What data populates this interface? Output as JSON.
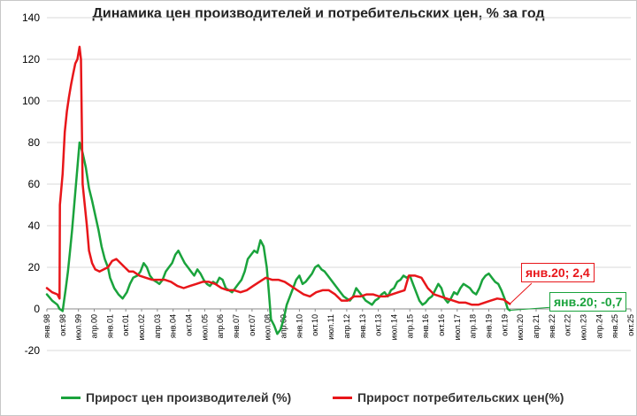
{
  "chart_data": {
    "type": "line",
    "title": "Динамика цен производителей и потребительских цен, % за год",
    "xlabel": "",
    "ylabel": "",
    "ylim": [
      -20,
      140
    ],
    "yticks": [
      -20,
      0,
      20,
      40,
      60,
      80,
      100,
      120,
      140
    ],
    "x_tick_labels": [
      "янв.98",
      "окт.98",
      "июл.99",
      "апр.00",
      "янв.01",
      "окт.01",
      "июл.02",
      "апр.03",
      "янв.04",
      "окт.04",
      "июл.05",
      "апр.06",
      "янв.07",
      "окт.07",
      "июл.08",
      "апр.09",
      "янв.10",
      "окт.10",
      "июл.11",
      "апр.12",
      "янв.13",
      "окт.13",
      "июл.14",
      "апр.15",
      "янв.16",
      "окт.16",
      "июл.17",
      "апр.18",
      "янв.19",
      "окт.19",
      "июл.20",
      "апр.21",
      "янв.22",
      "окт.22",
      "июл.23",
      "апр.24",
      "янв.25",
      "окт.25"
    ],
    "x_unit": "year",
    "xlim": [
      1998.0,
      2025.75
    ],
    "grid": true,
    "legend_position": "bottom",
    "series": [
      {
        "name": "Прирост цен производителей (%)",
        "color": "#1aa33c",
        "x": [
          1998.0,
          1998.25,
          1998.5,
          1998.6,
          1998.75,
          1998.9,
          1999.0,
          1999.1,
          1999.2,
          1999.3,
          1999.4,
          1999.55,
          1999.7,
          1999.85,
          2000.0,
          2000.15,
          2000.3,
          2000.45,
          2000.6,
          2000.75,
          2000.9,
          2001.0,
          2001.2,
          2001.4,
          2001.6,
          2001.8,
          2001.95,
          2002.1,
          2002.3,
          2002.45,
          2002.6,
          2002.75,
          2002.9,
          2003.05,
          2003.2,
          2003.35,
          2003.5,
          2003.65,
          2003.8,
          2003.95,
          2004.1,
          2004.25,
          2004.4,
          2004.55,
          2004.7,
          2004.85,
          2005.0,
          2005.15,
          2005.3,
          2005.45,
          2005.6,
          2005.75,
          2005.9,
          2006.05,
          2006.2,
          2006.35,
          2006.5,
          2006.65,
          2006.8,
          2006.95,
          2007.1,
          2007.25,
          2007.4,
          2007.55,
          2007.7,
          2007.85,
          2008.0,
          2008.15,
          2008.3,
          2008.45,
          2008.55,
          2008.65,
          2008.8,
          2008.95,
          2009.1,
          2009.25,
          2009.4,
          2009.55,
          2009.7,
          2009.85,
          2010.0,
          2010.15,
          2010.3,
          2010.45,
          2010.6,
          2010.75,
          2010.9,
          2011.05,
          2011.2,
          2011.35,
          2011.5,
          2011.65,
          2011.8,
          2011.95,
          2012.1,
          2012.25,
          2012.4,
          2012.55,
          2012.7,
          2012.85,
          2013.0,
          2013.15,
          2013.3,
          2013.45,
          2013.6,
          2013.75,
          2013.9,
          2014.05,
          2014.2,
          2014.35,
          2014.5,
          2014.65,
          2014.8,
          2014.95,
          2015.1,
          2015.25,
          2015.4,
          2015.55,
          2015.7,
          2015.85,
          2016.0,
          2016.15,
          2016.3,
          2016.45,
          2016.6,
          2016.75,
          2016.9,
          2017.05,
          2017.2,
          2017.35,
          2017.5,
          2017.65,
          2017.8,
          2017.95,
          2018.1,
          2018.25,
          2018.4,
          2018.55,
          2018.7,
          2018.85,
          2019.0,
          2019.15,
          2019.3,
          2019.45,
          2019.6,
          2019.75,
          2019.9,
          2020.0
        ],
        "values": [
          7,
          4,
          2,
          0,
          -1,
          10,
          18,
          28,
          38,
          50,
          62,
          80,
          75,
          68,
          58,
          52,
          45,
          38,
          30,
          24,
          20,
          15,
          10,
          7,
          5,
          8,
          12,
          15,
          16,
          18,
          22,
          20,
          16,
          14,
          13,
          12,
          14,
          18,
          20,
          22,
          26,
          28,
          25,
          22,
          20,
          18,
          16,
          19,
          17,
          14,
          12,
          11,
          13,
          12,
          15,
          14,
          10,
          9,
          8,
          10,
          12,
          14,
          18,
          24,
          26,
          28,
          27,
          33,
          30,
          20,
          8,
          -5,
          -8,
          -12,
          -10,
          -5,
          2,
          6,
          10,
          14,
          16,
          12,
          13,
          15,
          17,
          20,
          21,
          19,
          18,
          16,
          14,
          12,
          10,
          8,
          6,
          5,
          4,
          6,
          10,
          8,
          6,
          4,
          3,
          2,
          4,
          5,
          7,
          8,
          6,
          9,
          10,
          13,
          14,
          16,
          15,
          16,
          12,
          8,
          4,
          2,
          3,
          5,
          6,
          9,
          12,
          10,
          5,
          3,
          5,
          8,
          7,
          10,
          12,
          11,
          10,
          8,
          7,
          10,
          14,
          16,
          17,
          15,
          13,
          12,
          9,
          5,
          0,
          -0.7
        ]
      },
      {
        "name": "Прирост потребительских цен(%)",
        "color": "#e8161a",
        "x": [
          1998.0,
          1998.25,
          1998.5,
          1998.6,
          1998.62,
          1998.75,
          1998.85,
          1998.95,
          1999.05,
          1999.15,
          1999.25,
          1999.35,
          1999.45,
          1999.5,
          1999.55,
          1999.62,
          1999.7,
          1999.8,
          1999.9,
          2000.0,
          2000.15,
          2000.3,
          2000.5,
          2000.7,
          2000.9,
          2001.1,
          2001.3,
          2001.5,
          2001.7,
          2001.9,
          2002.1,
          2002.4,
          2002.7,
          2003.0,
          2003.3,
          2003.6,
          2003.9,
          2004.2,
          2004.5,
          2004.8,
          2005.1,
          2005.4,
          2005.7,
          2006.0,
          2006.3,
          2006.6,
          2006.9,
          2007.2,
          2007.5,
          2007.8,
          2008.1,
          2008.4,
          2008.7,
          2009.0,
          2009.3,
          2009.6,
          2009.9,
          2010.2,
          2010.5,
          2010.8,
          2011.1,
          2011.4,
          2011.7,
          2012.0,
          2012.3,
          2012.6,
          2012.9,
          2013.2,
          2013.5,
          2013.8,
          2014.1,
          2014.4,
          2014.7,
          2015.0,
          2015.2,
          2015.5,
          2015.8,
          2016.1,
          2016.4,
          2016.7,
          2017.0,
          2017.3,
          2017.6,
          2017.9,
          2018.2,
          2018.5,
          2018.8,
          2019.1,
          2019.4,
          2019.7,
          2020.0
        ],
        "values": [
          10,
          8,
          7,
          5,
          50,
          65,
          85,
          95,
          102,
          108,
          113,
          118,
          120,
          123,
          126,
          120,
          60,
          50,
          40,
          28,
          22,
          19,
          18,
          19,
          20,
          23,
          24,
          22,
          20,
          18,
          18,
          16,
          15,
          14,
          14,
          14,
          13,
          11,
          10,
          11,
          12,
          13,
          13,
          12,
          10,
          9,
          9,
          8,
          9,
          11,
          13,
          15,
          14,
          14,
          13,
          11,
          9,
          7,
          6,
          8,
          9,
          9,
          7,
          4,
          4,
          6,
          6,
          7,
          7,
          6,
          6,
          7,
          8,
          9,
          16,
          16,
          15,
          10,
          7,
          6,
          5,
          4,
          3,
          3,
          2,
          2,
          3,
          4,
          5,
          4.5,
          2.4
        ]
      }
    ],
    "annotations": [
      {
        "text": "янв.20; 2,4",
        "series": 1,
        "x": 2020.0,
        "y": 2.4,
        "color": "#e8161a"
      },
      {
        "text": "янв.20; -0,7",
        "series": 0,
        "x": 2020.0,
        "y": -0.7,
        "color": "#1aa33c"
      }
    ]
  }
}
